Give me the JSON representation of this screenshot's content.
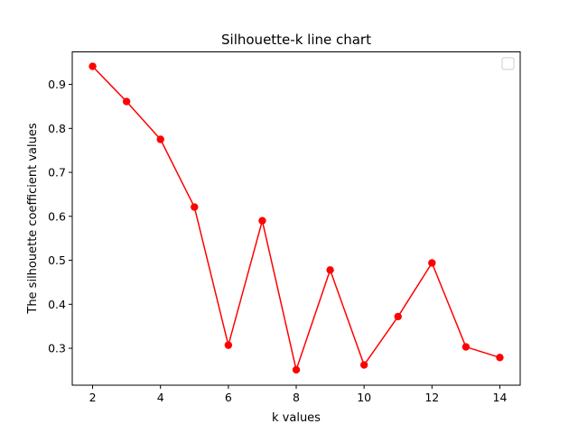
{
  "chart_data": {
    "type": "line",
    "title": "Silhouette-k line chart",
    "xlabel": "k values",
    "ylabel": "The silhouette coefficient values",
    "xlim": [
      1.4,
      14.6
    ],
    "ylim": [
      0.216,
      0.974
    ],
    "xticks": [
      2,
      4,
      6,
      8,
      10,
      12,
      14
    ],
    "yticks": [
      0.3,
      0.4,
      0.5,
      0.6,
      0.7,
      0.8,
      0.9
    ],
    "ytick_labels": [
      "0.3",
      "0.4",
      "0.5",
      "0.6",
      "0.7",
      "0.8",
      "0.9"
    ],
    "grid": false,
    "legend": "upper right (empty)",
    "series": [
      {
        "color": "#ff0000",
        "marker": "circle",
        "x": [
          2,
          3,
          4,
          5,
          6,
          7,
          8,
          9,
          10,
          11,
          12,
          13,
          14
        ],
        "y": [
          0.941,
          0.861,
          0.775,
          0.621,
          0.307,
          0.59,
          0.251,
          0.478,
          0.262,
          0.372,
          0.494,
          0.303,
          0.279
        ]
      }
    ]
  }
}
